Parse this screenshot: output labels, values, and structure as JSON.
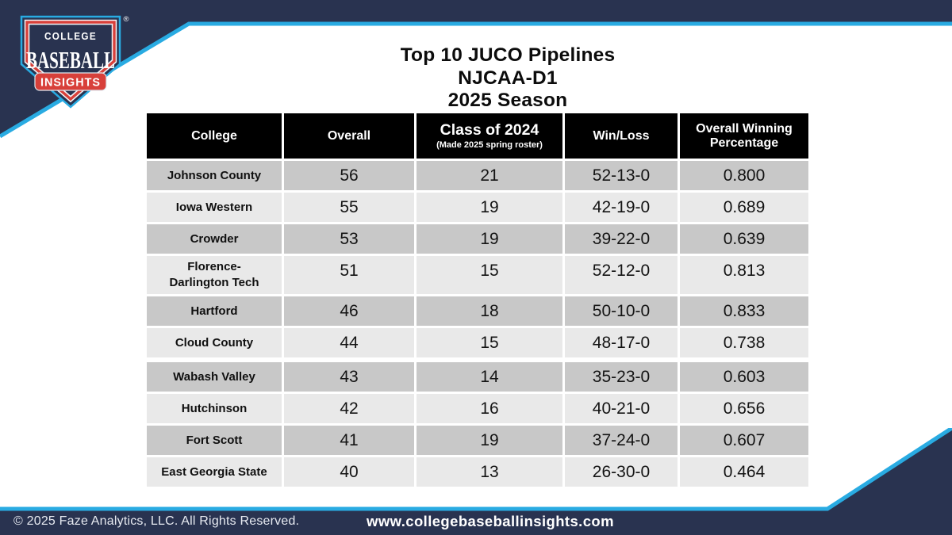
{
  "colors": {
    "navy": "#293350",
    "cyan": "#29abe2",
    "red": "#d8403a",
    "row_dark": "#c8c8c8",
    "row_light": "#e9e9e9",
    "header_bg": "#000000"
  },
  "logo": {
    "line1": "COLLEGE",
    "line2": "BASEBALL",
    "line3": "INSIGHTS",
    "registered": "®"
  },
  "title": {
    "line1": "Top 10 JUCO Pipelines",
    "line2": "NJCAA-D1",
    "line3": "2025 Season"
  },
  "chart_data": {
    "type": "table",
    "title": "Top 10 JUCO Pipelines — NJCAA-D1 — 2025 Season",
    "header": [
      {
        "label": "College",
        "sublabel": ""
      },
      {
        "label": "Overall",
        "sublabel": ""
      },
      {
        "label": "Class of 2024",
        "sublabel": "(Made 2025 spring roster)",
        "big": true
      },
      {
        "label": "Win/Loss",
        "sublabel": ""
      },
      {
        "label": "Overall Winning Percentage",
        "sublabel": ""
      }
    ],
    "rows": [
      {
        "college": "Johnson County",
        "overall": "56",
        "class_of_2024": "21",
        "win_loss": "52-13-0",
        "overall_win_pct": "0.800",
        "shade": "dark",
        "gap_before": false
      },
      {
        "college": "Iowa Western",
        "overall": "55",
        "class_of_2024": "19",
        "win_loss": "42-19-0",
        "overall_win_pct": "0.689",
        "shade": "light",
        "gap_before": false
      },
      {
        "college": "Crowder",
        "overall": "53",
        "class_of_2024": "19",
        "win_loss": "39-22-0",
        "overall_win_pct": "0.639",
        "shade": "dark",
        "gap_before": false
      },
      {
        "college": "Florence-Darlington Tech",
        "overall": "51",
        "class_of_2024": "15",
        "win_loss": "52-12-0",
        "overall_win_pct": "0.813",
        "shade": "light",
        "gap_before": false
      },
      {
        "college": "Hartford",
        "overall": "46",
        "class_of_2024": "18",
        "win_loss": "50-10-0",
        "overall_win_pct": "0.833",
        "shade": "dark",
        "gap_before": false
      },
      {
        "college": "Cloud County",
        "overall": "44",
        "class_of_2024": "15",
        "win_loss": "48-17-0",
        "overall_win_pct": "0.738",
        "shade": "light",
        "gap_before": false
      },
      {
        "college": "Wabash Valley",
        "overall": "43",
        "class_of_2024": "14",
        "win_loss": "35-23-0",
        "overall_win_pct": "0.603",
        "shade": "dark",
        "gap_before": true
      },
      {
        "college": "Hutchinson",
        "overall": "42",
        "class_of_2024": "16",
        "win_loss": "40-21-0",
        "overall_win_pct": "0.656",
        "shade": "light",
        "gap_before": false
      },
      {
        "college": "Fort Scott",
        "overall": "41",
        "class_of_2024": "19",
        "win_loss": "37-24-0",
        "overall_win_pct": "0.607",
        "shade": "dark",
        "gap_before": false
      },
      {
        "college": "East Georgia State",
        "overall": "40",
        "class_of_2024": "13",
        "win_loss": "26-30-0",
        "overall_win_pct": "0.464",
        "shade": "light",
        "gap_before": false
      }
    ]
  },
  "footer": {
    "copyright": "© 2025 Faze Analytics, LLC. All Rights Reserved.",
    "website": "www.collegebaseballinsights.com"
  }
}
